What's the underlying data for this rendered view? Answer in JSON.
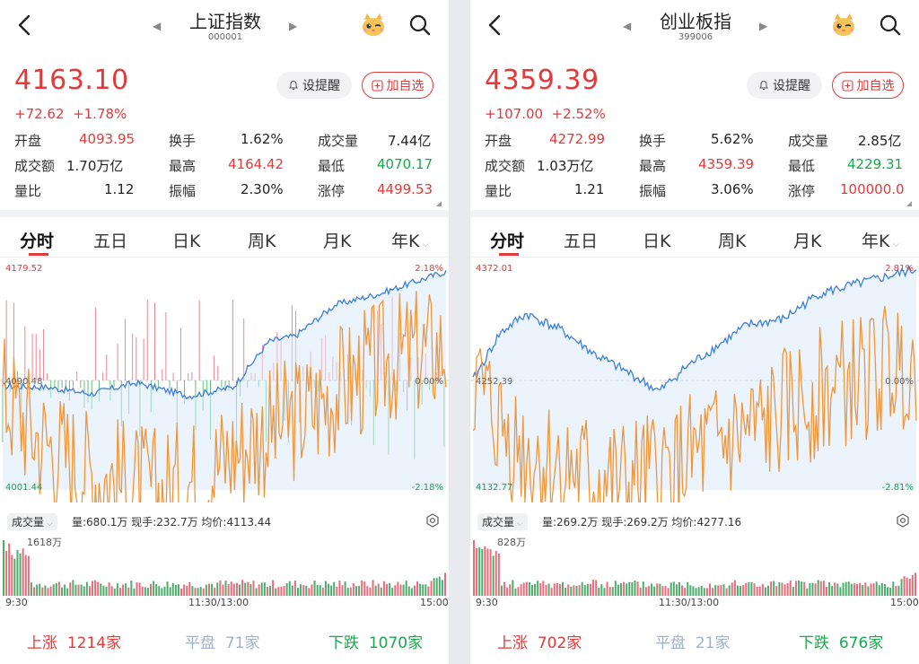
{
  "panels": [
    {
      "title": "上证指数",
      "code": "000001",
      "price": "4163.10",
      "change": "+72.62",
      "change_pct": "+1.78%",
      "alert_label": "设提醒",
      "add_label": "加自选",
      "stats": [
        [
          {
            "label": "开盘",
            "value": "4093.95",
            "color": "red"
          },
          {
            "label": "换手",
            "value": "1.62%",
            "color": "dark"
          },
          {
            "label": "成交量",
            "value": "7.44亿",
            "color": "dark"
          }
        ],
        [
          {
            "label": "成交额",
            "value": "1.70万亿",
            "color": "dark"
          },
          {
            "label": "最高",
            "value": "4164.42",
            "color": "red"
          },
          {
            "label": "最低",
            "value": "4070.17",
            "color": "green"
          }
        ],
        [
          {
            "label": "量比",
            "value": "1.12",
            "color": "dark"
          },
          {
            "label": "振幅",
            "value": "2.30%",
            "color": "dark"
          },
          {
            "label": "涨停",
            "value": "4499.53",
            "color": "red"
          }
        ]
      ],
      "tabs": [
        "分时",
        "五日",
        "日K",
        "周K",
        "月K",
        "年K"
      ],
      "chart": {
        "top_left": "4179.52",
        "top_right": "2.18%",
        "mid_left": "4090.48",
        "mid_right": "0.00%",
        "bottom_left": "4001.44",
        "bottom_right": "-2.18%"
      },
      "volume": {
        "label": "成交量",
        "info": "量:680.1万  现手:232.7万  均价:4113.44",
        "max_label": "1618万"
      },
      "times": [
        "9:30",
        "11:30/13:00",
        "15:00"
      ],
      "footer": {
        "up_label": "上涨",
        "up_value": "1214家",
        "flat_label": "平盘",
        "flat_value": "71家",
        "down_label": "下跌",
        "down_value": "1070家"
      }
    },
    {
      "title": "创业板指",
      "code": "399006",
      "price": "4359.39",
      "change": "+107.00",
      "change_pct": "+2.52%",
      "alert_label": "设提醒",
      "add_label": "加自选",
      "stats": [
        [
          {
            "label": "开盘",
            "value": "4272.99",
            "color": "red"
          },
          {
            "label": "换手",
            "value": "5.62%",
            "color": "dark"
          },
          {
            "label": "成交量",
            "value": "2.85亿",
            "color": "dark"
          }
        ],
        [
          {
            "label": "成交额",
            "value": "1.03万亿",
            "color": "dark"
          },
          {
            "label": "最高",
            "value": "4359.39",
            "color": "red"
          },
          {
            "label": "最低",
            "value": "4229.31",
            "color": "green"
          }
        ],
        [
          {
            "label": "量比",
            "value": "1.21",
            "color": "dark"
          },
          {
            "label": "振幅",
            "value": "3.06%",
            "color": "dark"
          },
          {
            "label": "涨停",
            "value": "100000.0",
            "color": "red"
          }
        ]
      ],
      "tabs": [
        "分时",
        "五日",
        "日K",
        "周K",
        "月K",
        "年K"
      ],
      "chart": {
        "top_left": "4372.01",
        "top_right": "2.81%",
        "mid_left": "4252.39",
        "mid_right": "0.00%",
        "bottom_left": "4132.77",
        "bottom_right": "-2.81%"
      },
      "volume": {
        "label": "成交量",
        "info": "量:269.2万  现手:269.2万  均价:4277.16",
        "max_label": "828万"
      },
      "times": [
        "9:30",
        "11:30/13:00",
        "15:00"
      ],
      "footer": {
        "up_label": "上涨",
        "up_value": "702家",
        "flat_label": "平盘",
        "flat_value": "21家",
        "down_label": "下跌",
        "down_value": "676家"
      }
    }
  ],
  "colors": {
    "up": "#e23a3a",
    "down": "#19a74d",
    "line": "#3d7fd8",
    "avg": "#f0963a",
    "flat": "#9fb3c8"
  }
}
